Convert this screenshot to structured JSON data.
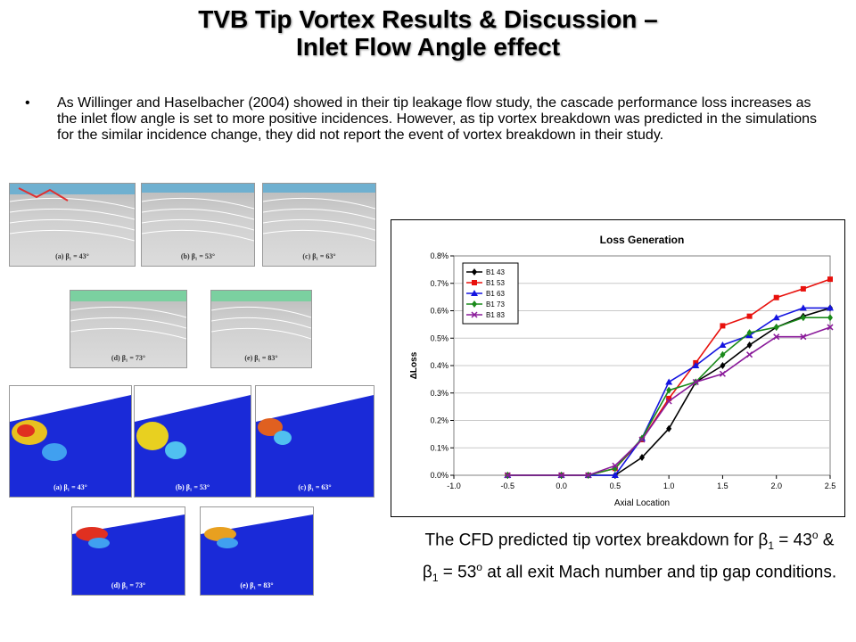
{
  "slide": {
    "title_line1": "TVB Tip Vortex Results & Discussion –",
    "title_line2": "Inlet Flow Angle effect",
    "bullet_symbol": "•",
    "bullet_text": "As Willinger and Haselbacher (2004) showed in their tip leakage flow study, the cascade performance loss increases as the inlet flow angle is set to more positive incidences. However, as tip vortex breakdown was predicted in the simulations for the similar incidence change, they did not report the event of vortex breakdown in their study.",
    "caption": {
      "part1": "The CFD predicted tip vortex breakdown for ",
      "beta": "β",
      "sub": "1",
      "eq43": " = 43",
      "deg": "o",
      "amp": " & ",
      "eq53": " = 53",
      "part2": " at all exit Mach number and tip gap conditions."
    }
  },
  "figures": {
    "flow": [
      "(a) β₁ = 43°",
      "(b) β₁ = 53°",
      "(c) β₁ = 63°",
      "(d) β₁ = 73°",
      "(e) β₁ = 83°"
    ],
    "contour": [
      "(a) β₁ = 43°",
      "(b) β₁ = 53°",
      "(c) β₁ = 63°",
      "(d) β₁ = 73°",
      "(e) β₁ = 83°"
    ]
  },
  "chart_data": {
    "type": "line",
    "title": "Loss Generation",
    "xlabel": "Axial Location",
    "ylabel": "ΔLoss",
    "xlim": [
      -1.0,
      2.5
    ],
    "ylim": [
      0.0,
      0.008
    ],
    "x_ticks": [
      "-1.0",
      "-0.5",
      "0.0",
      "0.5",
      "1.0",
      "1.5",
      "2.0",
      "2.5"
    ],
    "y_ticks": [
      "0.0%",
      "0.1%",
      "0.2%",
      "0.3%",
      "0.4%",
      "0.5%",
      "0.6%",
      "0.7%",
      "0.8%"
    ],
    "legend_position": "top-left",
    "x": [
      -0.5,
      0.0,
      0.25,
      0.5,
      0.75,
      1.0,
      1.25,
      1.5,
      1.75,
      2.0,
      2.25,
      2.5
    ],
    "series": [
      {
        "name": "B1 43",
        "color": "#000000",
        "marker": "diamond",
        "values": [
          0.0,
          0.0,
          0.0,
          0.0,
          0.00065,
          0.0017,
          0.0034,
          0.004,
          0.00475,
          0.0054,
          0.0058,
          0.0061
        ]
      },
      {
        "name": "B1 53",
        "color": "#e8100c",
        "marker": "square",
        "values": [
          0.0,
          0.0,
          0.0,
          0.00025,
          0.0013,
          0.0028,
          0.0041,
          0.00545,
          0.0058,
          0.00648,
          0.0068,
          0.00715
        ]
      },
      {
        "name": "B1 63",
        "color": "#1414e0",
        "marker": "triangle",
        "values": [
          0.0,
          0.0,
          0.0,
          0.0,
          0.00135,
          0.0034,
          0.004,
          0.00475,
          0.0051,
          0.00575,
          0.0061,
          0.0061
        ]
      },
      {
        "name": "B1 73",
        "color": "#1a8a1a",
        "marker": "diamond",
        "values": [
          0.0,
          0.0,
          0.0,
          0.00025,
          0.00135,
          0.0031,
          0.0034,
          0.0044,
          0.0052,
          0.0054,
          0.00575,
          0.00575
        ]
      },
      {
        "name": "B1 83",
        "color": "#8a1a9a",
        "marker": "x",
        "values": [
          0.0,
          0.0,
          0.0,
          0.00035,
          0.0013,
          0.0027,
          0.0034,
          0.0037,
          0.0044,
          0.00505,
          0.00505,
          0.0054
        ]
      }
    ]
  }
}
